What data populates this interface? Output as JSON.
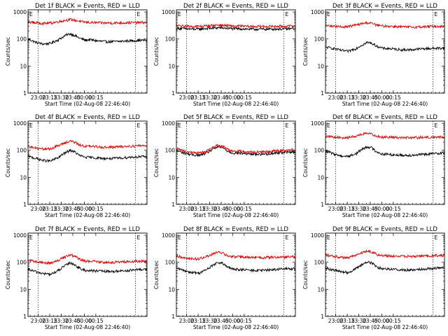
{
  "figure": {
    "start_time_label": "Start Time (02-Aug-08 22:46:40)",
    "ylabel": "Counts/sec",
    "time_ticks": [
      "23:00",
      "23:15",
      "23:30",
      "23:45",
      "00:00",
      "00:15"
    ],
    "y_ticks": [
      "1",
      "10",
      "100",
      "1000"
    ],
    "marker_labels": [
      "E",
      "E"
    ]
  },
  "colors": {
    "events": "#000000",
    "lld": "#e00000"
  },
  "chart_data": [
    {
      "type": "line",
      "title": "Det 1f BLACK = Events, RED = LLD",
      "x_unit": "minutes after 22:46:40",
      "x": [
        0,
        10,
        20,
        30,
        40,
        50,
        55,
        60,
        65,
        70,
        75,
        80,
        90,
        100,
        110,
        120,
        130,
        140,
        150
      ],
      "ylim": [
        1,
        1200
      ],
      "yscale": "log",
      "series": [
        {
          "name": "Events",
          "values": [
            100,
            75,
            65,
            70,
            95,
            140,
            155,
            140,
            115,
            100,
            90,
            95,
            85,
            80,
            80,
            82,
            85,
            88,
            90
          ]
        },
        {
          "name": "LLD",
          "values": [
            430,
            400,
            380,
            390,
            440,
            500,
            520,
            500,
            470,
            430,
            420,
            410,
            400,
            390,
            390,
            395,
            400,
            405,
            410
          ]
        }
      ]
    },
    {
      "type": "line",
      "title": "Det 2f BLACK = Events, RED = LLD",
      "x_unit": "minutes after 22:46:40",
      "x": [
        0,
        10,
        20,
        30,
        40,
        50,
        55,
        60,
        65,
        70,
        75,
        80,
        90,
        100,
        110,
        120,
        130,
        140,
        150
      ],
      "ylim": [
        1,
        1200
      ],
      "yscale": "log",
      "series": [
        {
          "name": "Events",
          "values": [
            250,
            240,
            230,
            235,
            245,
            255,
            260,
            255,
            250,
            245,
            240,
            240,
            235,
            230,
            230,
            232,
            235,
            235,
            240
          ]
        },
        {
          "name": "LLD",
          "values": [
            310,
            300,
            290,
            295,
            305,
            320,
            330,
            320,
            315,
            305,
            300,
            300,
            295,
            290,
            290,
            292,
            295,
            295,
            300
          ]
        }
      ]
    },
    {
      "type": "line",
      "title": "Det 3f BLACK = Events, RED = LLD",
      "x_unit": "minutes after 22:46:40",
      "x": [
        0,
        10,
        20,
        30,
        40,
        50,
        55,
        60,
        65,
        70,
        75,
        80,
        90,
        100,
        110,
        120,
        130,
        140,
        150
      ],
      "ylim": [
        1,
        1200
      ],
      "yscale": "log",
      "series": [
        {
          "name": "Events",
          "values": [
            50,
            45,
            38,
            35,
            45,
            65,
            75,
            70,
            58,
            50,
            45,
            45,
            42,
            40,
            40,
            42,
            44,
            45,
            46
          ]
        },
        {
          "name": "LLD",
          "values": [
            320,
            300,
            280,
            290,
            330,
            380,
            400,
            380,
            340,
            310,
            300,
            300,
            290,
            280,
            275,
            280,
            285,
            290,
            295
          ]
        }
      ]
    },
    {
      "type": "line",
      "title": "Det 4f BLACK = Events, RED = LLD",
      "x_unit": "minutes after 22:46:40",
      "x": [
        0,
        10,
        20,
        30,
        40,
        50,
        55,
        60,
        65,
        70,
        75,
        80,
        90,
        100,
        110,
        120,
        130,
        140,
        150
      ],
      "ylim": [
        1,
        1200
      ],
      "yscale": "log",
      "series": [
        {
          "name": "Events",
          "values": [
            60,
            50,
            42,
            40,
            55,
            85,
            100,
            90,
            70,
            60,
            55,
            55,
            52,
            50,
            50,
            52,
            55,
            57,
            58
          ]
        },
        {
          "name": "LLD",
          "values": [
            140,
            120,
            110,
            115,
            150,
            200,
            220,
            200,
            170,
            150,
            140,
            140,
            135,
            130,
            130,
            135,
            140,
            145,
            150
          ]
        }
      ]
    },
    {
      "type": "line",
      "title": "Det 5f BLACK = Events, RED = LLD",
      "x_unit": "minutes after 22:46:40",
      "x": [
        0,
        10,
        20,
        30,
        40,
        50,
        55,
        60,
        65,
        70,
        75,
        80,
        90,
        100,
        110,
        120,
        130,
        140,
        150
      ],
      "ylim": [
        1,
        1200
      ],
      "yscale": "log",
      "series": [
        {
          "name": "Events",
          "values": [
            95,
            80,
            68,
            65,
            80,
            120,
            135,
            125,
            100,
            85,
            78,
            80,
            75,
            72,
            72,
            75,
            80,
            85,
            88
          ]
        },
        {
          "name": "LLD",
          "values": [
            115,
            95,
            82,
            78,
            95,
            140,
            155,
            145,
            118,
            100,
            92,
            95,
            90,
            86,
            86,
            90,
            95,
            100,
            105
          ]
        }
      ]
    },
    {
      "type": "line",
      "title": "Det 6f BLACK = Events, RED = LLD",
      "x_unit": "minutes after 22:46:40",
      "x": [
        0,
        10,
        20,
        30,
        40,
        50,
        55,
        60,
        65,
        70,
        75,
        80,
        90,
        100,
        110,
        120,
        130,
        140,
        150
      ],
      "ylim": [
        1,
        1200
      ],
      "yscale": "log",
      "series": [
        {
          "name": "Events",
          "values": [
            95,
            75,
            62,
            60,
            75,
            120,
            135,
            125,
            95,
            80,
            72,
            72,
            68,
            66,
            66,
            68,
            72,
            75,
            80
          ]
        },
        {
          "name": "LLD",
          "values": [
            330,
            310,
            290,
            300,
            340,
            400,
            420,
            400,
            350,
            320,
            310,
            310,
            300,
            295,
            290,
            295,
            300,
            305,
            310
          ]
        }
      ]
    },
    {
      "type": "line",
      "title": "Det 7f BLACK = Events, RED = LLD",
      "x_unit": "minutes after 22:46:40",
      "x": [
        0,
        10,
        20,
        30,
        40,
        50,
        55,
        60,
        65,
        70,
        75,
        80,
        90,
        100,
        110,
        120,
        130,
        140,
        150
      ],
      "ylim": [
        1,
        1200
      ],
      "yscale": "log",
      "series": [
        {
          "name": "Events",
          "values": [
            55,
            45,
            38,
            36,
            50,
            80,
            95,
            85,
            65,
            55,
            50,
            50,
            48,
            46,
            46,
            48,
            50,
            52,
            55
          ]
        },
        {
          "name": "LLD",
          "values": [
            120,
            105,
            95,
            95,
            120,
            165,
            185,
            170,
            140,
            120,
            110,
            110,
            105,
            100,
            100,
            102,
            105,
            108,
            110
          ]
        }
      ]
    },
    {
      "type": "line",
      "title": "Det 8f BLACK = Events, RED = LLD",
      "x_unit": "minutes after 22:46:40",
      "x": [
        0,
        10,
        20,
        30,
        40,
        50,
        55,
        60,
        65,
        70,
        75,
        80,
        90,
        100,
        110,
        120,
        130,
        140,
        150
      ],
      "ylim": [
        1,
        1200
      ],
      "yscale": "log",
      "series": [
        {
          "name": "Events",
          "values": [
            60,
            50,
            42,
            40,
            55,
            85,
            100,
            90,
            70,
            60,
            55,
            55,
            52,
            50,
            50,
            52,
            55,
            57,
            58
          ]
        },
        {
          "name": "LLD",
          "values": [
            170,
            150,
            135,
            135,
            165,
            215,
            235,
            220,
            185,
            165,
            160,
            160,
            155,
            150,
            150,
            152,
            155,
            158,
            160
          ]
        }
      ]
    },
    {
      "type": "line",
      "title": "Det 9f BLACK = Events, RED = LLD",
      "x_unit": "minutes after 22:46:40",
      "x": [
        0,
        10,
        20,
        30,
        40,
        50,
        55,
        60,
        65,
        70,
        75,
        80,
        90,
        100,
        110,
        120,
        130,
        140,
        150
      ],
      "ylim": [
        1,
        1200
      ],
      "yscale": "log",
      "series": [
        {
          "name": "Events",
          "values": [
            62,
            52,
            45,
            42,
            58,
            90,
            105,
            95,
            75,
            62,
            58,
            58,
            55,
            52,
            52,
            55,
            58,
            60,
            62
          ]
        },
        {
          "name": "LLD",
          "values": [
            190,
            170,
            150,
            150,
            180,
            240,
            265,
            245,
            205,
            185,
            175,
            175,
            170,
            165,
            165,
            168,
            172,
            176,
            180
          ]
        }
      ]
    }
  ]
}
